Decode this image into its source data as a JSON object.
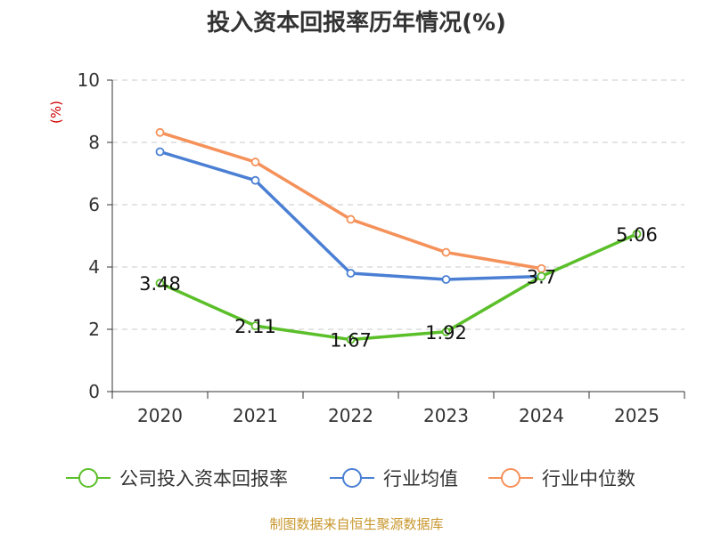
{
  "chart_data": {
    "type": "line",
    "title": "投入资本回报率历年情况(%)",
    "ylabel": "(%)",
    "xlabel": "",
    "categories": [
      "2020",
      "2021",
      "2022",
      "2023",
      "2024",
      "2025"
    ],
    "ylim": [
      0,
      10
    ],
    "yticks": [
      0,
      2,
      4,
      6,
      8,
      10
    ],
    "grid": true,
    "legend_position": "bottom",
    "series": [
      {
        "name": "公司投入资本回报率",
        "color": "#5bbf2a",
        "values": [
          3.48,
          2.11,
          1.67,
          1.92,
          3.7,
          5.06
        ],
        "labels": [
          "3.48",
          "2.11",
          "1.67",
          "1.92",
          "3.7",
          "5.06"
        ]
      },
      {
        "name": "行业均值",
        "color": "#4a7fd4",
        "values": [
          7.7,
          6.78,
          3.8,
          3.6,
          3.7,
          null
        ]
      },
      {
        "name": "行业中位数",
        "color": "#f5915a",
        "values": [
          8.32,
          7.37,
          5.53,
          4.47,
          3.95,
          null
        ]
      }
    ]
  },
  "source_text": "制图数据来自恒生聚源数据库"
}
